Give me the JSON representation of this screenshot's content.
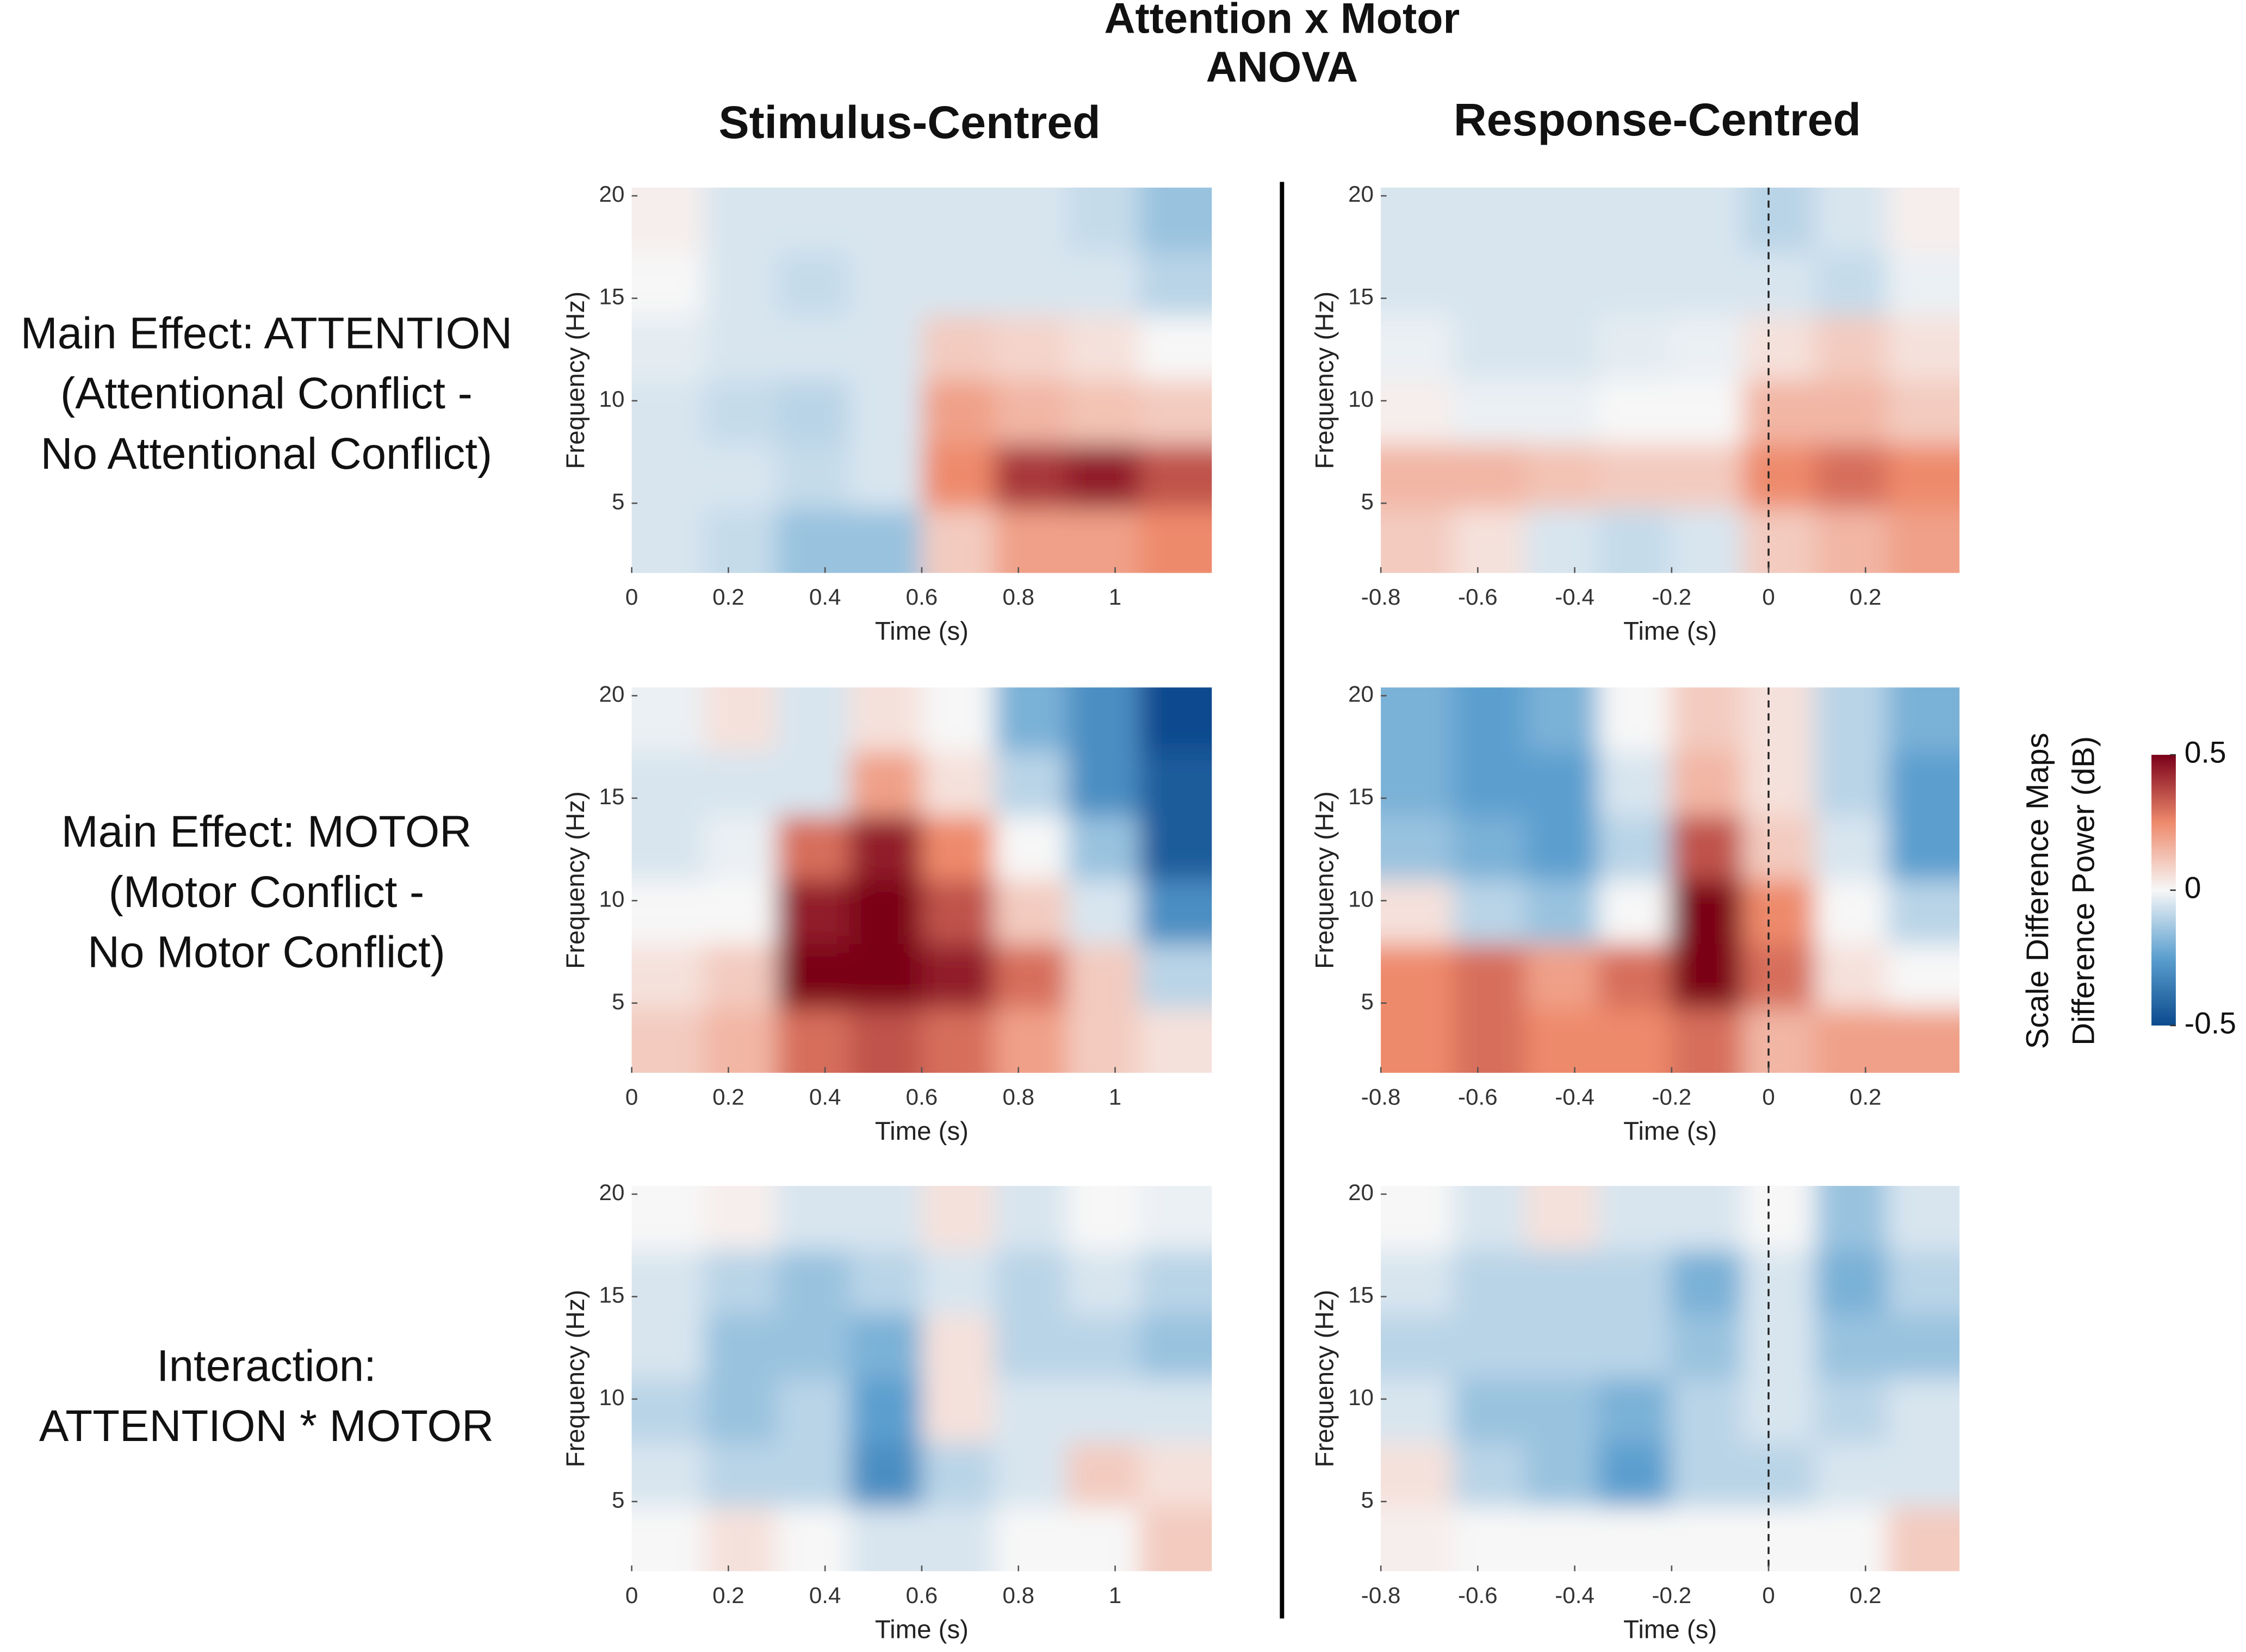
{
  "title": [
    "Attention x Motor",
    "ANOVA"
  ],
  "column_titles": [
    "Stimulus-Centred",
    "Response-Centred"
  ],
  "row_labels": [
    [
      "Main Effect: ATTENTION",
      "(Attentional Conflict -",
      "No Attentional Conflict)"
    ],
    [
      "Main Effect: MOTOR",
      "(Motor Conflict -",
      "No Motor Conflict)"
    ],
    [
      "Interaction:",
      "ATTENTION * MOTOR"
    ]
  ],
  "colorbar": {
    "label": [
      "Scale Difference Maps",
      "Difference Power (dB)"
    ],
    "lim": [
      -0.5,
      0.5
    ],
    "ticks": [
      -0.5,
      0,
      0.5
    ],
    "colormap": [
      "#0b4a8e",
      "#5b9fcf",
      "#f7f7f7",
      "#ee8a6c",
      "#7a0019"
    ]
  },
  "chart_data": [
    {
      "type": "heatmap",
      "xlabel": "Time (s)",
      "ylabel": "Frequency (Hz)",
      "xlim": [
        0,
        1.2
      ],
      "ylim": [
        1.6,
        20.4
      ],
      "xticks": [
        0,
        0.2,
        0.4,
        0.6,
        0.8,
        1
      ],
      "yticks": [
        5,
        10,
        15,
        20
      ],
      "z": [
        [
          0.02,
          -0.05,
          -0.05,
          -0.05,
          -0.05,
          -0.05,
          -0.08,
          -0.15
        ],
        [
          0,
          -0.05,
          -0.08,
          -0.05,
          -0.05,
          -0.05,
          -0.05,
          -0.1
        ],
        [
          -0.03,
          -0.05,
          -0.05,
          -0.05,
          0.1,
          0.08,
          0.05,
          0
        ],
        [
          -0.05,
          -0.08,
          -0.1,
          -0.05,
          0.2,
          0.15,
          0.12,
          0.1
        ],
        [
          -0.05,
          -0.05,
          -0.08,
          -0.05,
          0.25,
          0.4,
          0.45,
          0.35
        ],
        [
          -0.05,
          -0.08,
          -0.15,
          -0.15,
          0.1,
          0.2,
          0.2,
          0.25
        ]
      ]
    },
    {
      "type": "heatmap",
      "xlabel": "Time (s)",
      "ylabel": "Frequency (Hz)",
      "xlim": [
        -0.8,
        0.394
      ],
      "ylim": [
        1.6,
        20.4
      ],
      "xticks": [
        -0.8,
        -0.6,
        -0.4,
        -0.2,
        0,
        0.2
      ],
      "yticks": [
        5,
        10,
        15,
        20
      ],
      "vline": 0,
      "z": [
        [
          -0.05,
          -0.05,
          -0.05,
          -0.05,
          -0.05,
          -0.1,
          -0.05,
          0.02
        ],
        [
          -0.05,
          -0.05,
          -0.05,
          -0.05,
          -0.05,
          -0.05,
          -0.08,
          -0.02
        ],
        [
          -0.02,
          -0.05,
          -0.05,
          -0.03,
          -0.02,
          0.05,
          0.1,
          0.05
        ],
        [
          0.02,
          -0.02,
          -0.02,
          0,
          0,
          0.15,
          0.15,
          0.1
        ],
        [
          0.15,
          0.15,
          0.12,
          0.1,
          0.1,
          0.25,
          0.3,
          0.25
        ],
        [
          0.1,
          0.05,
          -0.05,
          -0.08,
          -0.05,
          0.1,
          0.15,
          0.2
        ]
      ]
    },
    {
      "type": "heatmap",
      "xlabel": "Time (s)",
      "ylabel": "Frequency (Hz)",
      "xlim": [
        0,
        1.2
      ],
      "ylim": [
        1.6,
        20.4
      ],
      "xticks": [
        0,
        0.2,
        0.4,
        0.6,
        0.8,
        1
      ],
      "yticks": [
        5,
        10,
        15,
        20
      ],
      "z": [
        [
          -0.02,
          0.05,
          -0.05,
          0.05,
          0,
          -0.2,
          -0.3,
          -0.5
        ],
        [
          -0.05,
          -0.05,
          -0.05,
          0.2,
          0.05,
          -0.1,
          -0.3,
          -0.45
        ],
        [
          -0.05,
          -0.02,
          0.3,
          0.45,
          0.25,
          0,
          -0.15,
          -0.45
        ],
        [
          0,
          0,
          0.45,
          0.5,
          0.35,
          0.1,
          -0.05,
          -0.3
        ],
        [
          0.05,
          0.1,
          0.5,
          0.5,
          0.45,
          0.3,
          0.1,
          -0.1
        ],
        [
          0.1,
          0.15,
          0.3,
          0.35,
          0.3,
          0.2,
          0.1,
          0.05
        ]
      ]
    },
    {
      "type": "heatmap",
      "xlabel": "Time (s)",
      "ylabel": "Frequency (Hz)",
      "xlim": [
        -0.8,
        0.394
      ],
      "ylim": [
        1.6,
        20.4
      ],
      "xticks": [
        -0.8,
        -0.6,
        -0.4,
        -0.2,
        0,
        0.2
      ],
      "yticks": [
        5,
        10,
        15,
        20
      ],
      "vline": 0,
      "z": [
        [
          -0.2,
          -0.25,
          -0.2,
          0,
          0.1,
          0.05,
          -0.1,
          -0.2
        ],
        [
          -0.2,
          -0.25,
          -0.25,
          -0.05,
          0.15,
          0.05,
          -0.1,
          -0.25
        ],
        [
          -0.15,
          -0.2,
          -0.25,
          -0.1,
          0.35,
          0.1,
          -0.05,
          -0.25
        ],
        [
          0.05,
          -0.1,
          -0.15,
          0,
          0.5,
          0.25,
          0,
          -0.1
        ],
        [
          0.25,
          0.3,
          0.2,
          0.3,
          0.5,
          0.3,
          0.05,
          0
        ],
        [
          0.25,
          0.3,
          0.25,
          0.25,
          0.3,
          0.15,
          0.2,
          0.2
        ]
      ]
    },
    {
      "type": "heatmap",
      "xlabel": "Time (s)",
      "ylabel": "Frequency (Hz)",
      "xlim": [
        0,
        1.2
      ],
      "ylim": [
        1.6,
        20.4
      ],
      "xticks": [
        0,
        0.2,
        0.4,
        0.6,
        0.8,
        1
      ],
      "yticks": [
        5,
        10,
        15,
        20
      ],
      "z": [
        [
          0,
          0.02,
          -0.05,
          -0.05,
          0.05,
          -0.05,
          0,
          -0.02
        ],
        [
          -0.05,
          -0.1,
          -0.15,
          -0.1,
          -0.05,
          -0.1,
          -0.05,
          -0.1
        ],
        [
          -0.05,
          -0.15,
          -0.15,
          -0.2,
          0.05,
          -0.1,
          -0.1,
          -0.15
        ],
        [
          -0.1,
          -0.15,
          -0.1,
          -0.25,
          0.05,
          -0.05,
          -0.05,
          -0.05
        ],
        [
          -0.05,
          -0.1,
          -0.1,
          -0.3,
          -0.1,
          -0.05,
          0.1,
          0.05
        ],
        [
          0,
          0.05,
          0,
          -0.05,
          -0.05,
          0,
          0,
          0.1
        ]
      ]
    },
    {
      "type": "heatmap",
      "xlabel": "Time (s)",
      "ylabel": "Frequency (Hz)",
      "xlim": [
        -0.8,
        0.394
      ],
      "ylim": [
        1.6,
        20.4
      ],
      "xticks": [
        -0.8,
        -0.6,
        -0.4,
        -0.2,
        0,
        0.2
      ],
      "yticks": [
        5,
        10,
        15,
        20
      ],
      "vline": 0,
      "z": [
        [
          0,
          -0.05,
          0.05,
          -0.05,
          -0.05,
          0,
          -0.15,
          -0.05
        ],
        [
          -0.05,
          -0.1,
          -0.1,
          -0.1,
          -0.2,
          -0.05,
          -0.2,
          -0.1
        ],
        [
          -0.1,
          -0.1,
          -0.1,
          -0.1,
          -0.15,
          -0.05,
          -0.15,
          -0.15
        ],
        [
          -0.05,
          -0.15,
          -0.15,
          -0.2,
          -0.1,
          -0.05,
          -0.1,
          -0.05
        ],
        [
          0.05,
          -0.1,
          -0.15,
          -0.25,
          -0.1,
          -0.1,
          -0.05,
          -0.05
        ],
        [
          0.02,
          0,
          0,
          0,
          0,
          0,
          0,
          0.1
        ]
      ]
    }
  ]
}
